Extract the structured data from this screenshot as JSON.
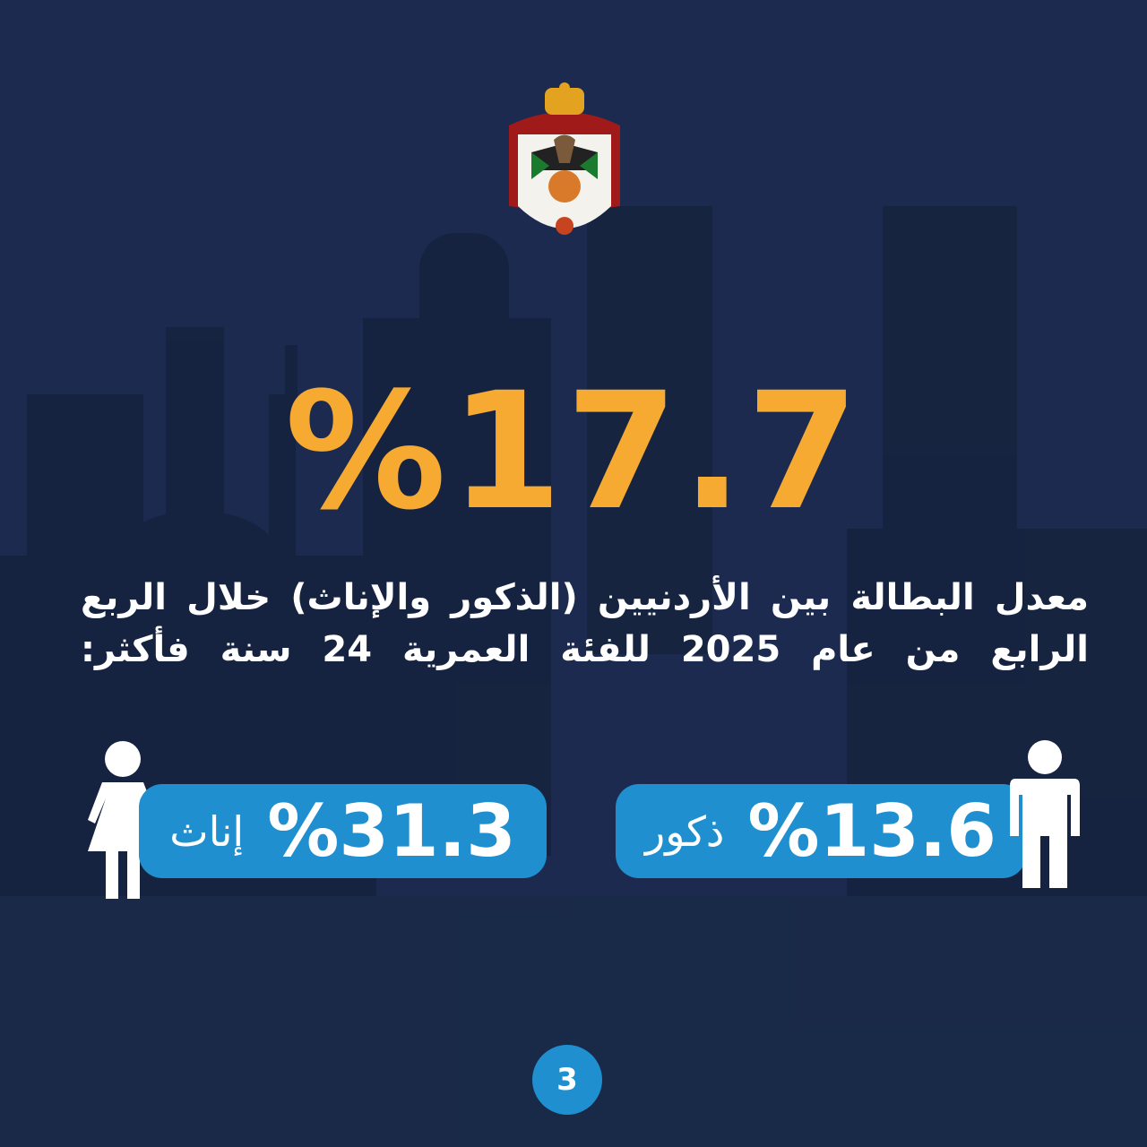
{
  "headline": {
    "value": "%17.7",
    "color": "#f7aa32"
  },
  "description": "معدل البطالة بين الأردنيين (الذكور والإناث) خلال الربع الرابع من عام 2025 للفئة العمرية 24 سنة فأكثر:",
  "females": {
    "value": "%31.3",
    "label": "إناث",
    "icon": "female-icon"
  },
  "males": {
    "value": "%13.6",
    "label": "ذكور",
    "icon": "male-icon"
  },
  "page_number": "3",
  "colors": {
    "background": "#1b2a4e",
    "accent": "#1f8fcf",
    "highlight": "#f7aa32"
  },
  "logo": {
    "name": "jordan-coat-of-arms"
  }
}
